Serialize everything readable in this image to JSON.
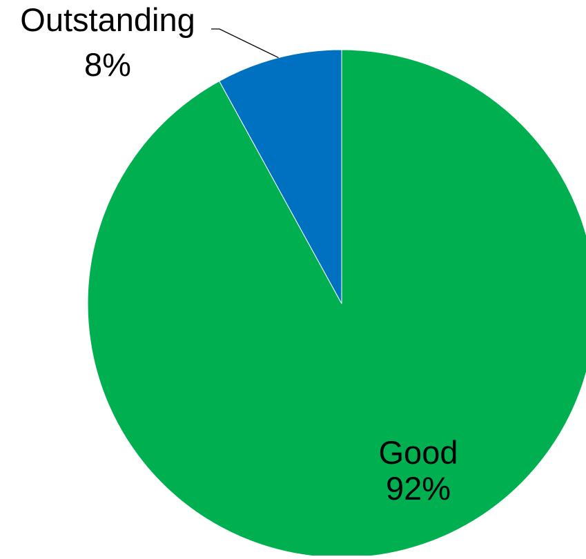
{
  "chart_data": {
    "type": "pie",
    "title": "",
    "start_angle": "12 o'clock",
    "direction": "clockwise",
    "slices": [
      {
        "label": "Good",
        "percent_label": "92%",
        "value": 92,
        "color": "#00B050"
      },
      {
        "label": "Outstanding",
        "percent_label": "8%",
        "value": 8,
        "color": "#0070C0"
      }
    ]
  }
}
